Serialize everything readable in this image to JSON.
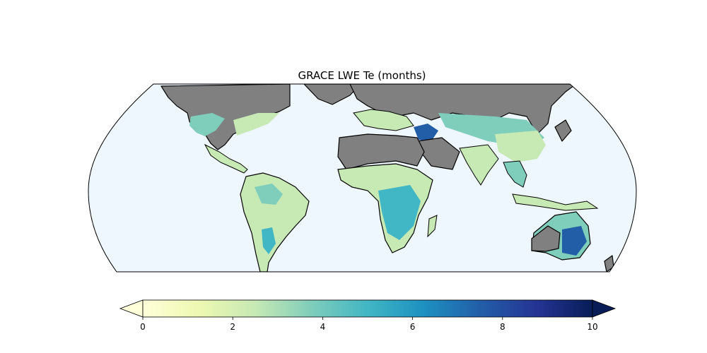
{
  "map": {
    "title": "GRACE LWE Te (months)",
    "projection": "robinson",
    "ocean_color": "#eef6fe",
    "no_data_land_color": "#808080",
    "extent_lat": [
      -60,
      84
    ]
  },
  "colorbar": {
    "colormap": "YlGnBu",
    "min": 0,
    "max": 10,
    "extend": "both",
    "stops": [
      "#ffffd9",
      "#edf8b1",
      "#c7e9b4",
      "#7fcdbb",
      "#41b6c4",
      "#1d91c0",
      "#225ea8",
      "#253494",
      "#081d58"
    ],
    "ticks": [
      {
        "value": 0,
        "label": "0"
      },
      {
        "value": 2,
        "label": "2"
      },
      {
        "value": 4,
        "label": "4"
      },
      {
        "value": 6,
        "label": "6"
      },
      {
        "value": 8,
        "label": "8"
      },
      {
        "value": 10,
        "label": "10"
      }
    ]
  }
}
